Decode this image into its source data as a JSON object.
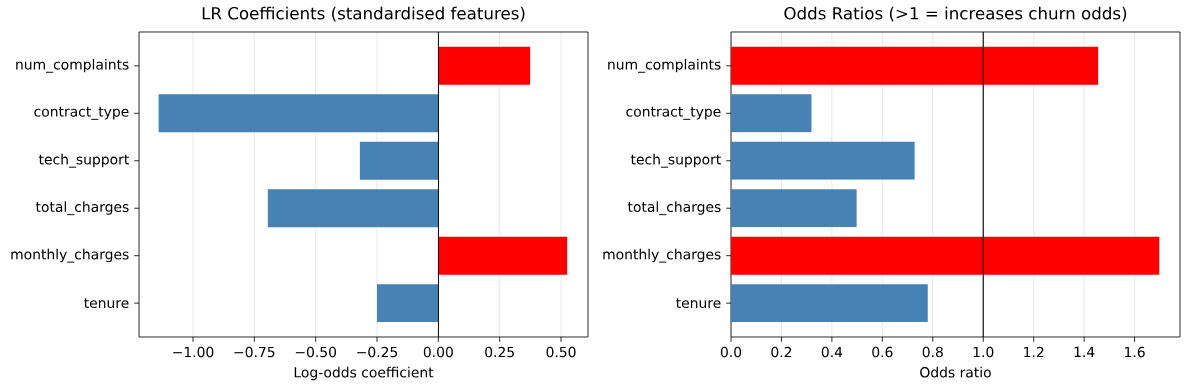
{
  "chart_data": [
    {
      "type": "bar",
      "orientation": "horizontal",
      "title": "LR Coefficients (standardised features)",
      "xlabel": "Log-odds coefficient",
      "categories": [
        "num_complaints",
        "contract_type",
        "tech_support",
        "total_charges",
        "monthly_charges",
        "tenure"
      ],
      "values": [
        0.374,
        -1.14,
        -0.32,
        -0.695,
        0.525,
        -0.25
      ],
      "colors": [
        "#ff0000",
        "#4682b4",
        "#4682b4",
        "#4682b4",
        "#ff0000",
        "#4682b4"
      ],
      "xlim": [
        -1.22,
        0.61
      ],
      "xticks": [
        {
          "value": -1,
          "label": "−1.00"
        },
        {
          "value": -0.75,
          "label": "−0.75"
        },
        {
          "value": -0.5,
          "label": "−0.50"
        },
        {
          "value": -0.25,
          "label": "−0.25"
        },
        {
          "value": 0,
          "label": "0.00"
        },
        {
          "value": 0.25,
          "label": "0.25"
        },
        {
          "value": 0.5,
          "label": "0.50"
        }
      ],
      "grid": "x",
      "ref_lines": [
        {
          "axis": "x",
          "value": 0,
          "color": "#000000"
        }
      ]
    },
    {
      "type": "bar",
      "orientation": "horizontal",
      "title": "Odds Ratios (>1 = increases churn odds)",
      "xlabel": "Odds ratio",
      "categories": [
        "num_complaints",
        "contract_type",
        "tech_support",
        "total_charges",
        "monthly_charges",
        "tenure"
      ],
      "values": [
        1.456,
        0.319,
        0.728,
        0.498,
        1.698,
        0.78
      ],
      "colors": [
        "#ff0000",
        "#4682b4",
        "#4682b4",
        "#4682b4",
        "#ff0000",
        "#4682b4"
      ],
      "xlim": [
        0,
        1.78
      ],
      "xticks": [
        {
          "value": 0,
          "label": "0.0"
        },
        {
          "value": 0.2,
          "label": "0.2"
        },
        {
          "value": 0.4,
          "label": "0.4"
        },
        {
          "value": 0.6,
          "label": "0.6"
        },
        {
          "value": 0.8,
          "label": "0.8"
        },
        {
          "value": 1,
          "label": "1.0"
        },
        {
          "value": 1.2,
          "label": "1.2"
        },
        {
          "value": 1.4,
          "label": "1.4"
        },
        {
          "value": 1.6,
          "label": "1.6"
        }
      ],
      "grid": "x",
      "ref_lines": [
        {
          "axis": "x",
          "value": 1,
          "color": "#000000"
        }
      ]
    }
  ]
}
